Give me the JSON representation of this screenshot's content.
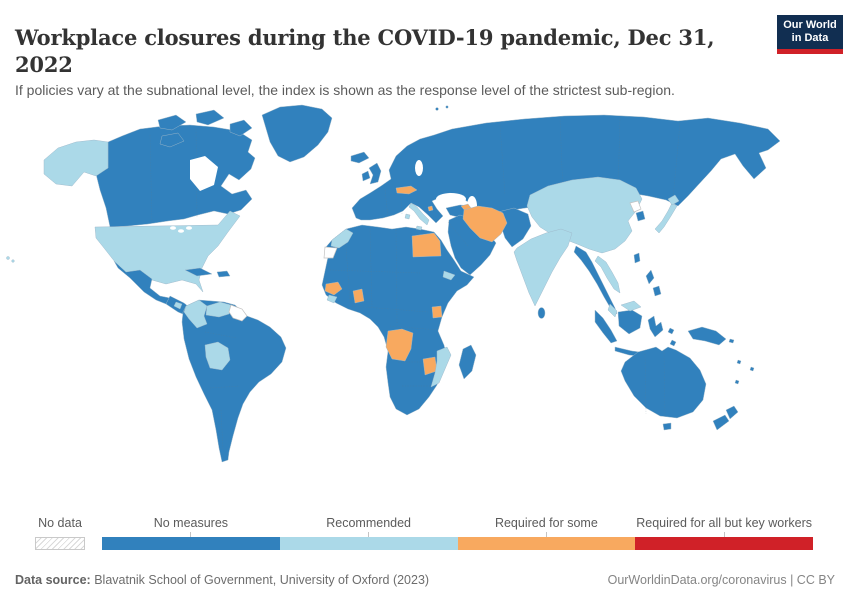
{
  "header": {
    "title": "Workplace closures during the COVID-19 pandemic, Dec 31, 2022",
    "subtitle": "If policies vary at the subnational level, the index is shown as the response level of the strictest sub-region.",
    "logo": {
      "line1": "Our World",
      "line2": "in Data",
      "bg_color": "#112e51",
      "accent_color": "#d02128"
    }
  },
  "legend": {
    "no_data_label": "No data",
    "no_data_color": "#ffffff",
    "bins": [
      {
        "key": "no_measures",
        "label": "No measures",
        "color": "#3181bd"
      },
      {
        "key": "recommended",
        "label": "Recommended",
        "color": "#abd9e8"
      },
      {
        "key": "required_some",
        "label": "Required for some",
        "color": "#f8a95f"
      },
      {
        "key": "required_all",
        "label": "Required for all but key workers",
        "color": "#d02128"
      }
    ]
  },
  "footer": {
    "source_label": "Data source:",
    "source_value": " Blavatnik School of Government, University of Oxford (2023)",
    "credit": "OurWorldinData.org/coronavirus | CC BY"
  },
  "map": {
    "ocean_color": "#ffffff",
    "regions": {
      "alaska": "recommended",
      "canada": "no_measures",
      "arctic_islands": "no_measures",
      "greenland": "no_measures",
      "usa": "recommended",
      "hawaii": "recommended",
      "mexico": "no_measures",
      "central_america": "no_measures",
      "nicaragua": "recommended",
      "cuba": "no_measures",
      "hispaniola": "no_measures",
      "south_america": "no_measures",
      "colombia": "recommended",
      "venezuela": "recommended",
      "guyanas": "no_data",
      "bolivia": "recommended",
      "iceland": "no_measures",
      "uk": "no_measures",
      "ireland": "no_measures",
      "eurasia": "no_measures",
      "svalbard": "no_measures",
      "italy": "recommended",
      "italy_islands": "recommended",
      "austria": "required_some",
      "montenegro": "required_some",
      "azerbaijan": "required_some",
      "turkey": "no_measures",
      "arabia": "no_measures",
      "afghanistan_pakistan": "no_measures",
      "iran": "required_some",
      "india": "recommended",
      "sri_lanka": "no_measures",
      "china_mongolia": "recommended",
      "indochina": "no_measures",
      "vietnam_laos": "recommended",
      "malay_peninsula": "recommended",
      "malaysia_borneo": "recommended",
      "borneo_indonesia": "no_measures",
      "sumatra": "no_measures",
      "java": "no_measures",
      "sulawesi": "no_measures",
      "lesser_sunda": "no_measures",
      "philippines": "no_measures",
      "taiwan": "no_measures",
      "japan": "recommended",
      "hokkaido": "recommended",
      "north_korea": "no_data",
      "south_korea": "no_measures",
      "new_guinea": "no_measures",
      "australia": "no_measures",
      "tasmania": "no_measures",
      "new_zealand": "no_measures",
      "pacific_islands": "no_measures",
      "africa": "no_measures",
      "morocco": "recommended",
      "western_sahara": "no_data",
      "egypt": "required_some",
      "guinea": "required_some",
      "sierra_leone": "recommended",
      "ghana": "required_some",
      "uganda": "required_some",
      "eritrea": "recommended",
      "angola": "required_some",
      "zimbabwe": "required_some",
      "mozambique": "recommended",
      "madagascar": "no_measures"
    }
  }
}
